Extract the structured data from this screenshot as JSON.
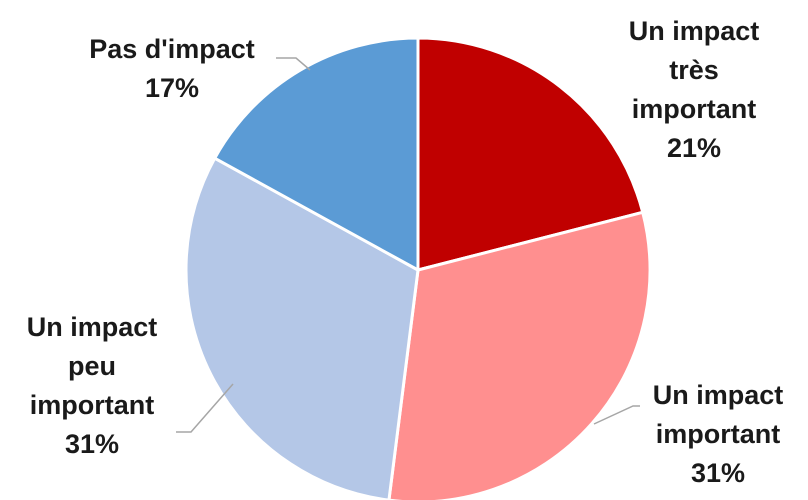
{
  "chart_data": {
    "type": "pie",
    "title": "",
    "slices": [
      {
        "label": [
          "Un impact",
          "très",
          "important"
        ],
        "value": 21,
        "value_label": "21%",
        "color": "#c00000"
      },
      {
        "label": [
          "Un impact",
          "important"
        ],
        "value": 31,
        "value_label": "31%",
        "color": "#ff8f8f"
      },
      {
        "label": [
          "Un impact",
          "peu",
          "important"
        ],
        "value": 31,
        "value_label": "31%",
        "color": "#b4c7e7"
      },
      {
        "label": [
          "Pas d'impact"
        ],
        "value": 17,
        "value_label": "17%",
        "color": "#5b9bd5"
      }
    ],
    "start_angle": "12 o'clock",
    "direction": "clockwise",
    "slice_border_color": "#ffffff",
    "legend": "none",
    "data_labels": "outside, category and percentage"
  }
}
